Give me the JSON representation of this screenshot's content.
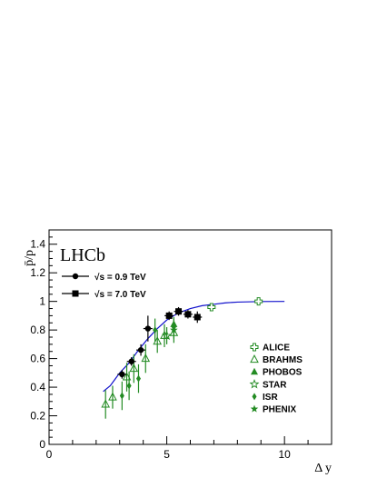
{
  "chart_data": {
    "type": "scatter",
    "experiment_label": "LHCb",
    "xlabel": "Δ y",
    "ylabel": "p̄/p",
    "xlim": [
      0,
      12
    ],
    "ylim": [
      0,
      1.5
    ],
    "x_ticks": [
      0,
      5,
      10
    ],
    "x_tick_labels": [
      "0",
      "5",
      "10"
    ],
    "y_ticks": [
      0,
      0.2,
      0.4,
      0.6,
      0.8,
      1,
      1.2,
      1.4
    ],
    "y_tick_labels": [
      "0",
      "0.2",
      "0.4",
      "0.6",
      "0.8",
      "1",
      "1.2",
      "1.4"
    ],
    "grid": false,
    "colors": {
      "lhcb": "#000000",
      "fit": "#1111cc",
      "other": "#238b23"
    },
    "fit_curve": {
      "x": [
        2.3,
        2.6,
        3.0,
        3.4,
        3.8,
        4.2,
        4.6,
        5.0,
        5.5,
        6.0,
        6.5,
        7.0,
        7.5,
        8.0,
        9.0,
        10.0
      ],
      "y": [
        0.37,
        0.41,
        0.5,
        0.57,
        0.66,
        0.74,
        0.81,
        0.87,
        0.92,
        0.95,
        0.97,
        0.98,
        0.99,
        0.995,
        0.999,
        1.0
      ]
    },
    "legend_lhcb": [
      {
        "label": "√s = 0.9 TeV",
        "marker": "circle"
      },
      {
        "label": "√s = 7.0 TeV",
        "marker": "square"
      }
    ],
    "legend_other": [
      {
        "label": "ALICE",
        "marker": "open-cross"
      },
      {
        "label": "BRAHMS",
        "marker": "open-triangle"
      },
      {
        "label": "PHOBOS",
        "marker": "triangle"
      },
      {
        "label": "STAR",
        "marker": "open-star"
      },
      {
        "label": "ISR",
        "marker": "diamond"
      },
      {
        "label": "PHENIX",
        "marker": "star"
      }
    ],
    "series": [
      {
        "name": "√s = 0.9 TeV",
        "marker": "circle",
        "color": "#000000",
        "points": [
          {
            "x": 3.1,
            "y": 0.49,
            "err": 0.03
          },
          {
            "x": 3.5,
            "y": 0.58,
            "err": 0.03
          },
          {
            "x": 3.9,
            "y": 0.66,
            "err": 0.04
          },
          {
            "x": 4.2,
            "y": 0.81,
            "err": 0.09
          }
        ]
      },
      {
        "name": "√s = 7.0 TeV",
        "marker": "square",
        "color": "#000000",
        "points": [
          {
            "x": 5.1,
            "y": 0.9,
            "err": 0.03
          },
          {
            "x": 5.5,
            "y": 0.93,
            "err": 0.03
          },
          {
            "x": 5.9,
            "y": 0.91,
            "err": 0.03
          },
          {
            "x": 6.3,
            "y": 0.89,
            "err": 0.04
          }
        ]
      },
      {
        "name": "ALICE",
        "marker": "open-cross",
        "color": "#238b23",
        "points": [
          {
            "x": 6.9,
            "y": 0.96,
            "err": 0.02
          },
          {
            "x": 8.9,
            "y": 1.0,
            "err": 0.02
          }
        ]
      },
      {
        "name": "BRAHMS",
        "marker": "open-triangle",
        "color": "#238b23",
        "points": [
          {
            "x": 2.4,
            "y": 0.28,
            "err": 0.1
          },
          {
            "x": 2.7,
            "y": 0.33,
            "err": 0.08
          },
          {
            "x": 3.3,
            "y": 0.47,
            "err": 0.1
          },
          {
            "x": 3.6,
            "y": 0.53,
            "err": 0.1
          },
          {
            "x": 4.1,
            "y": 0.6,
            "err": 0.1
          },
          {
            "x": 4.6,
            "y": 0.72,
            "err": 0.08
          },
          {
            "x": 4.9,
            "y": 0.76,
            "err": 0.08
          },
          {
            "x": 5.3,
            "y": 0.78,
            "err": 0.07
          }
        ]
      },
      {
        "name": "PHOBOS",
        "marker": "triangle",
        "color": "#238b23",
        "points": [
          {
            "x": 5.3,
            "y": 0.84,
            "err": 0.05
          }
        ]
      },
      {
        "name": "STAR",
        "marker": "open-star",
        "color": "#238b23",
        "points": [
          {
            "x": 5.0,
            "y": 0.76,
            "err": 0.06
          }
        ]
      },
      {
        "name": "ISR",
        "marker": "diamond",
        "color": "#238b23",
        "points": [
          {
            "x": 3.1,
            "y": 0.34,
            "err": 0.1
          },
          {
            "x": 3.4,
            "y": 0.41,
            "err": 0.1
          },
          {
            "x": 3.8,
            "y": 0.46,
            "err": 0.1
          },
          {
            "x": 4.5,
            "y": 0.8,
            "err": 0.08
          },
          {
            "x": 5.3,
            "y": 0.82,
            "err": 0.06
          }
        ]
      },
      {
        "name": "PHENIX",
        "marker": "star",
        "color": "#238b23",
        "points": [
          {
            "x": 5.3,
            "y": 0.8,
            "err": 0.06
          }
        ]
      }
    ]
  }
}
